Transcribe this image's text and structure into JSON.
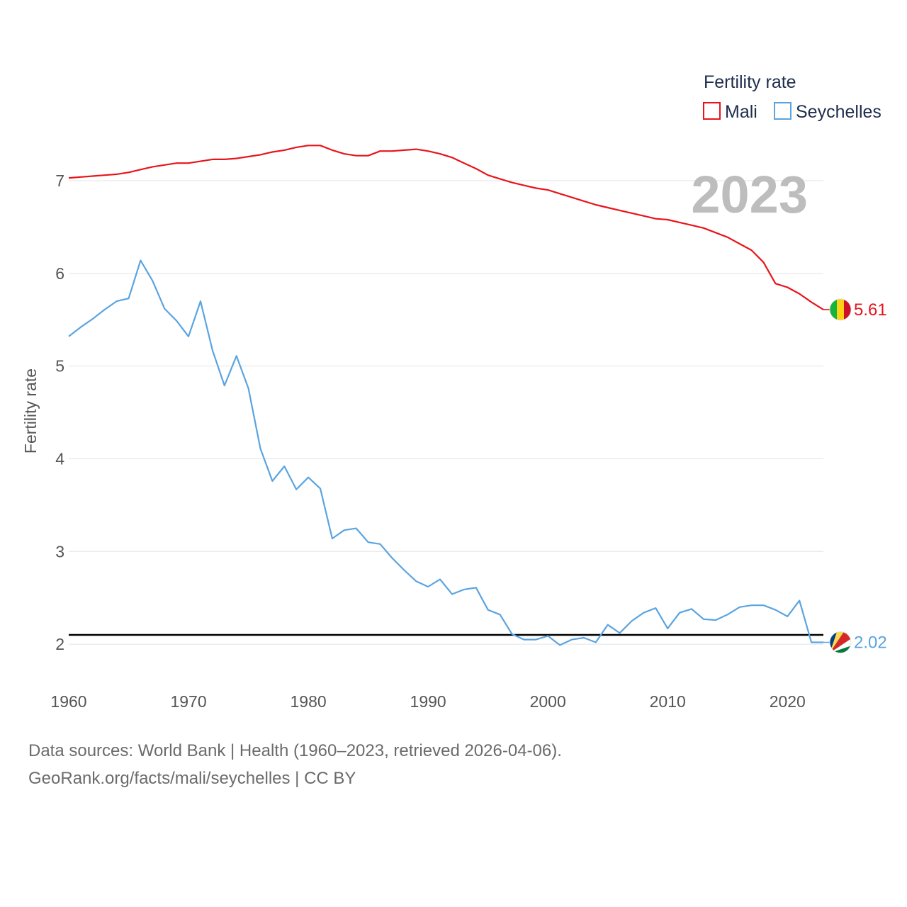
{
  "chart_data": {
    "type": "line",
    "ylabel": "Fertility rate",
    "xlabel": "",
    "year_label": "2023",
    "legend": {
      "title": "Fertility rate",
      "placement": "top-right"
    },
    "x": [
      1960,
      1961,
      1962,
      1963,
      1964,
      1965,
      1966,
      1967,
      1968,
      1969,
      1970,
      1971,
      1972,
      1973,
      1974,
      1975,
      1976,
      1977,
      1978,
      1979,
      1980,
      1981,
      1982,
      1983,
      1984,
      1985,
      1986,
      1987,
      1988,
      1989,
      1990,
      1991,
      1992,
      1993,
      1994,
      1995,
      1996,
      1997,
      1998,
      1999,
      2000,
      2001,
      2002,
      2003,
      2004,
      2005,
      2006,
      2007,
      2008,
      2009,
      2010,
      2011,
      2012,
      2013,
      2014,
      2015,
      2016,
      2017,
      2018,
      2019,
      2020,
      2021,
      2022,
      2023
    ],
    "xlim": [
      1960,
      2023
    ],
    "ylim": [
      1.55,
      7.65
    ],
    "x_ticks": [
      1960,
      1970,
      1980,
      1990,
      2000,
      2010,
      2020
    ],
    "y_ticks": [
      2,
      3,
      4,
      5,
      6,
      7
    ],
    "reference_line": 2.1,
    "series": [
      {
        "name": "Mali",
        "color": "#e8141b",
        "end_label": "5.61",
        "flag": "mali-flag",
        "values": [
          7.03,
          7.04,
          7.05,
          7.06,
          7.07,
          7.09,
          7.12,
          7.15,
          7.17,
          7.19,
          7.19,
          7.21,
          7.23,
          7.23,
          7.24,
          7.26,
          7.28,
          7.31,
          7.33,
          7.36,
          7.38,
          7.38,
          7.33,
          7.29,
          7.27,
          7.27,
          7.32,
          7.32,
          7.33,
          7.34,
          7.32,
          7.29,
          7.25,
          7.19,
          7.13,
          7.06,
          7.02,
          6.98,
          6.95,
          6.92,
          6.9,
          6.86,
          6.82,
          6.78,
          6.74,
          6.71,
          6.68,
          6.65,
          6.62,
          6.59,
          6.58,
          6.55,
          6.52,
          6.49,
          6.44,
          6.39,
          6.32,
          6.25,
          6.12,
          5.89,
          5.85,
          5.78,
          5.69,
          5.61
        ]
      },
      {
        "name": "Seychelles",
        "color": "#5ba4e0",
        "end_label": "2.02",
        "flag": "seychelles-flag",
        "values": [
          5.32,
          5.42,
          5.51,
          5.61,
          5.7,
          5.73,
          6.14,
          5.92,
          5.62,
          5.49,
          5.32,
          5.7,
          5.17,
          4.79,
          5.11,
          4.76,
          4.11,
          3.76,
          3.92,
          3.67,
          3.8,
          3.68,
          3.14,
          3.23,
          3.25,
          3.1,
          3.08,
          2.93,
          2.8,
          2.68,
          2.62,
          2.7,
          2.54,
          2.59,
          2.61,
          2.37,
          2.32,
          2.11,
          2.05,
          2.05,
          2.09,
          1.99,
          2.05,
          2.07,
          2.02,
          2.21,
          2.12,
          2.25,
          2.34,
          2.39,
          2.17,
          2.34,
          2.38,
          2.27,
          2.26,
          2.32,
          2.4,
          2.42,
          2.42,
          2.37,
          2.3,
          2.47,
          2.02,
          2.02
        ]
      }
    ]
  },
  "footer": {
    "line1": "Data sources: World Bank | Health (1960–2023, retrieved 2026-04-06).",
    "line2": "GeoRank.org/facts/mali/seychelles | CC BY"
  }
}
